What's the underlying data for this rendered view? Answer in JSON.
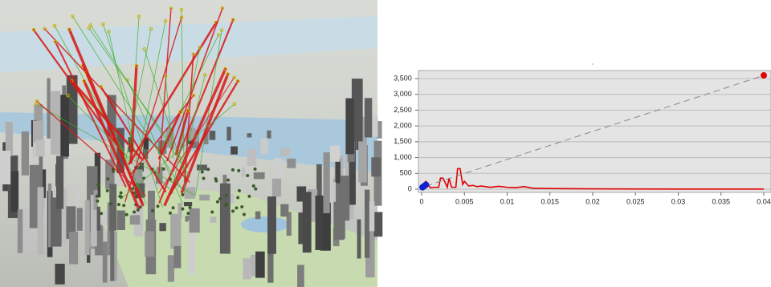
{
  "chart_data": {
    "type": "line",
    "xlim": [
      -0.0004,
      0.0408
    ],
    "xticks": [
      0,
      0.005,
      0.01,
      0.015,
      0.02,
      0.025,
      0.03,
      0.035,
      0.04
    ],
    "ylim": [
      -100,
      3750
    ],
    "yticks": [
      0,
      500,
      {
        "value": 1000,
        "label": "1,000"
      },
      {
        "value": 1500,
        "label": "1,500"
      },
      {
        "value": 2000,
        "label": "2,000"
      },
      {
        "value": 2500,
        "label": "2,500"
      },
      {
        "value": 3000,
        "label": "3,000"
      },
      {
        "value": 3500,
        "label": "3,500"
      }
    ],
    "grid": true,
    "series": [
      {
        "color": "#e00000",
        "x": [
          0,
          0.0005,
          0.001,
          0.0015,
          0.002,
          0.0022,
          0.0025,
          0.003,
          0.0032,
          0.0035,
          0.004,
          0.0042,
          0.0045,
          0.0048,
          0.005,
          0.0055,
          0.006,
          0.0065,
          0.007,
          0.008,
          0.009,
          0.01,
          0.011,
          0.012,
          0.013,
          0.015,
          0.02,
          0.03,
          0.04
        ],
        "values": [
          100,
          250,
          50,
          60,
          60,
          350,
          350,
          60,
          350,
          60,
          60,
          650,
          650,
          150,
          250,
          100,
          120,
          80,
          100,
          60,
          90,
          60,
          50,
          80,
          30,
          20,
          10,
          5,
          5
        ]
      },
      {
        "color": "#888888",
        "dash": true,
        "x": [
          0.0005,
          0.04
        ],
        "values": [
          100,
          3600
        ]
      },
      {
        "color": "#1020d0",
        "marker": true,
        "x": [
          0.0001,
          0.0003,
          0.0005
        ],
        "values": [
          60,
          100,
          140
        ]
      },
      {
        "color": "#e00000",
        "marker": true,
        "x": [
          0.04
        ],
        "values": [
          3600
        ]
      }
    ]
  }
}
